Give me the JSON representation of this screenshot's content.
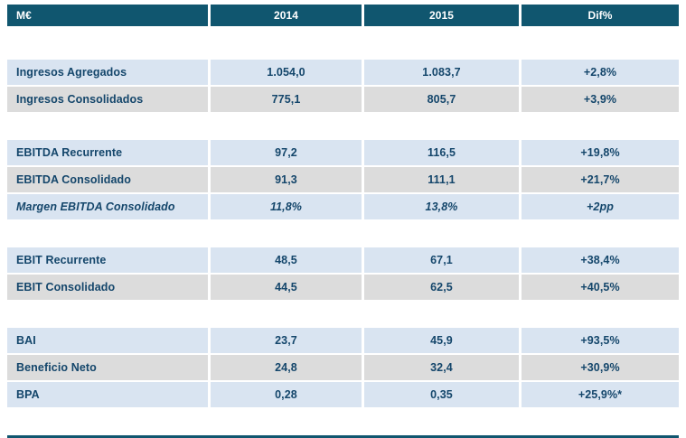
{
  "colors": {
    "header_bg": "#10566f",
    "row_blue": "#d9e4f1",
    "row_gray": "#dcdcdc",
    "text": "#14466b",
    "bottom_line": "#10566f"
  },
  "table": {
    "columns": [
      "M€",
      "2014",
      "2015",
      "Dif%"
    ],
    "groups": [
      {
        "rows": [
          {
            "label": "Ingresos Agregados",
            "y2014": "1.054,0",
            "y2015": "1.083,7",
            "dif": "+2,8%"
          },
          {
            "label": "Ingresos Consolidados",
            "y2014": "775,1",
            "y2015": "805,7",
            "dif": "+3,9%"
          }
        ]
      },
      {
        "rows": [
          {
            "label": "EBITDA Recurrente",
            "y2014": "97,2",
            "y2015": "116,5",
            "dif": "+19,8%"
          },
          {
            "label": "EBITDA Consolidado",
            "y2014": "91,3",
            "y2015": "111,1",
            "dif": "+21,7%"
          },
          {
            "label": "Margen EBITDA Consolidado",
            "y2014": "11,8%",
            "y2015": "13,8%",
            "dif": "+2pp"
          }
        ]
      },
      {
        "rows": [
          {
            "label": "EBIT Recurrente",
            "y2014": "48,5",
            "y2015": "67,1",
            "dif": "+38,4%"
          },
          {
            "label": "EBIT Consolidado",
            "y2014": "44,5",
            "y2015": "62,5",
            "dif": "+40,5%"
          }
        ]
      },
      {
        "rows": [
          {
            "label": "BAI",
            "y2014": "23,7",
            "y2015": "45,9",
            "dif": "+93,5%"
          },
          {
            "label": "Beneficio Neto",
            "y2014": "24,8",
            "y2015": "32,4",
            "dif": "+30,9%"
          },
          {
            "label": "BPA",
            "y2014": "0,28",
            "y2015": "0,35",
            "dif": "+25,9%*"
          }
        ]
      }
    ]
  }
}
